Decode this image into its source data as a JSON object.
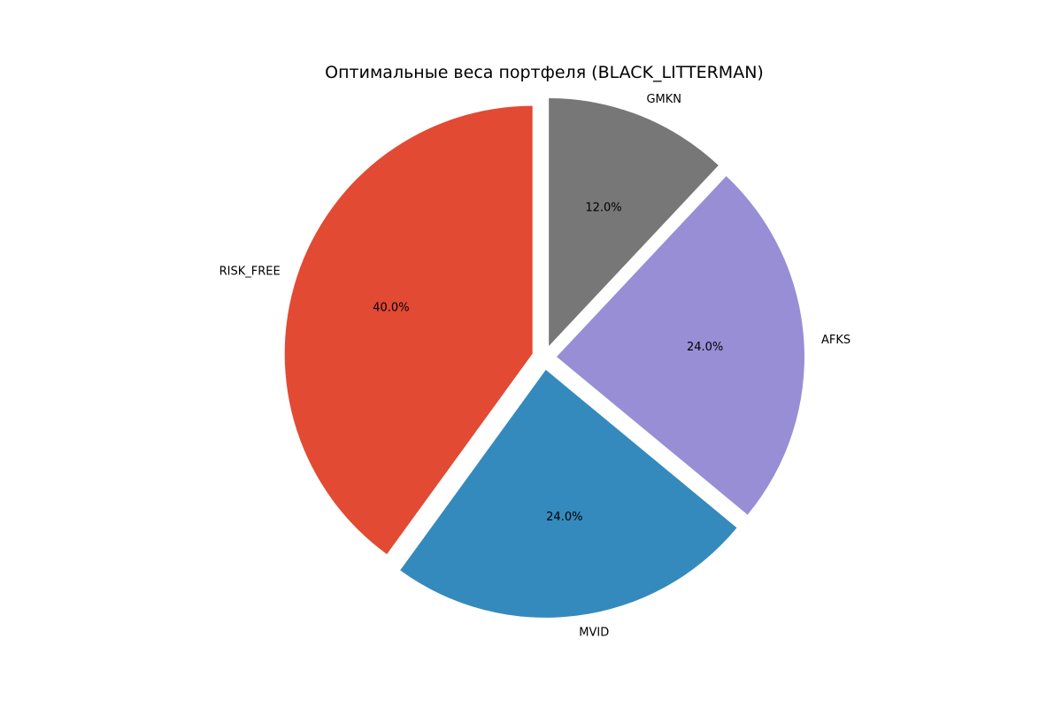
{
  "chart_data": {
    "type": "pie",
    "title": "Оптимальные веса портфеля (BLACK_LITTERMAN)",
    "slices": [
      {
        "label": "RISK_FREE",
        "value": 40.0,
        "pct_label": "40.0%",
        "color": "#E24A33"
      },
      {
        "label": "MVID",
        "value": 24.0,
        "pct_label": "24.0%",
        "color": "#348ABD"
      },
      {
        "label": "AFKS",
        "value": 24.0,
        "pct_label": "24.0%",
        "color": "#988ED5"
      },
      {
        "label": "GMKN",
        "value": 12.0,
        "pct_label": "12.0%",
        "color": "#777777"
      }
    ],
    "start_angle_deg": 90,
    "direction": "counterclockwise",
    "exploded": true,
    "legend": "none"
  }
}
